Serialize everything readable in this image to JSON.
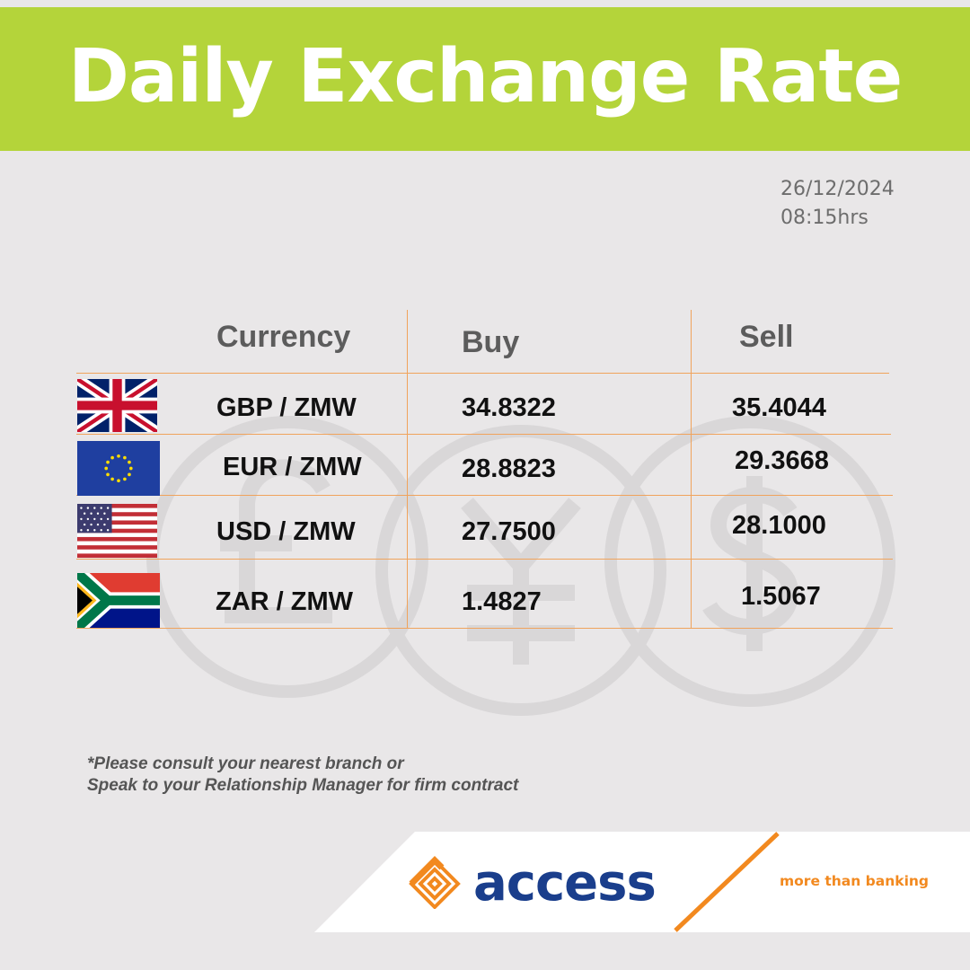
{
  "header": {
    "title": "Daily Exchange Rate"
  },
  "timestamp": {
    "date": "26/12/2024",
    "time": "08:15hrs"
  },
  "table": {
    "columns": [
      "Currency",
      "Buy",
      "Sell"
    ],
    "rows": [
      {
        "flag": "uk-flag-icon",
        "pair": "GBP / ZMW",
        "buy": "34.8322",
        "sell": "35.4044"
      },
      {
        "flag": "eu-flag-icon",
        "pair": "EUR / ZMW",
        "buy": "28.8823",
        "sell": "29.3668"
      },
      {
        "flag": "us-flag-icon",
        "pair": "USD / ZMW",
        "buy": "27.7500",
        "sell": "28.1000"
      },
      {
        "flag": "za-flag-icon",
        "pair": "ZAR / ZMW",
        "buy": "1.4827",
        "sell": "1.5067"
      }
    ]
  },
  "disclaimer": {
    "line1": "*Please consult your nearest branch or",
    "line2": "Speak to your Relationship Manager for firm contract"
  },
  "footer": {
    "brand": "access",
    "tagline": "more than banking"
  },
  "colors": {
    "banner": "#b4d43a",
    "background": "#e9e7e8",
    "divider": "#f0a35c",
    "brand_blue": "#1a3e8c",
    "brand_orange": "#f2891f"
  },
  "icons": [
    "pound-watermark-icon",
    "yen-watermark-icon",
    "dollar-watermark-icon",
    "access-diamond-logo-icon"
  ]
}
